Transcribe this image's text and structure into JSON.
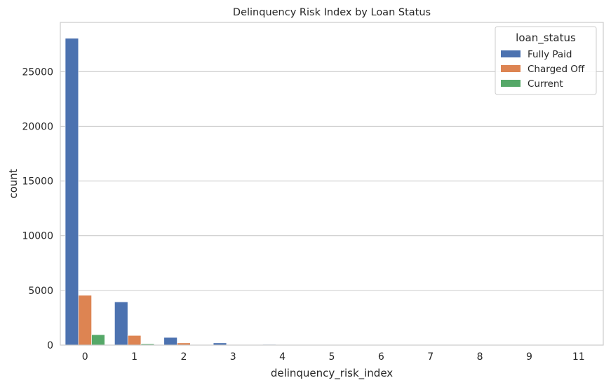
{
  "chart_data": {
    "type": "bar",
    "title": "Delinquency Risk Index by Loan Status",
    "xlabel": "delinquency_risk_index",
    "ylabel": "count",
    "categories": [
      "0",
      "1",
      "2",
      "3",
      "4",
      "5",
      "6",
      "7",
      "8",
      "9",
      "11"
    ],
    "ylim": [
      0,
      29500
    ],
    "yticks": [
      0,
      5000,
      10000,
      15000,
      20000,
      25000
    ],
    "grid": "horizontal",
    "legend": {
      "title": "loan_status",
      "placement": "top-right"
    },
    "series": [
      {
        "name": "Fully Paid",
        "color": "#4c72b0",
        "values": [
          28050,
          3950,
          700,
          200,
          60,
          20,
          10,
          5,
          3,
          2,
          1
        ]
      },
      {
        "name": "Charged Off",
        "color": "#dd8452",
        "values": [
          4550,
          880,
          200,
          40,
          15,
          5,
          3,
          2,
          1,
          1,
          0
        ]
      },
      {
        "name": "Current",
        "color": "#55a868",
        "values": [
          950,
          110,
          25,
          8,
          2,
          1,
          0,
          0,
          0,
          0,
          0
        ]
      }
    ]
  }
}
